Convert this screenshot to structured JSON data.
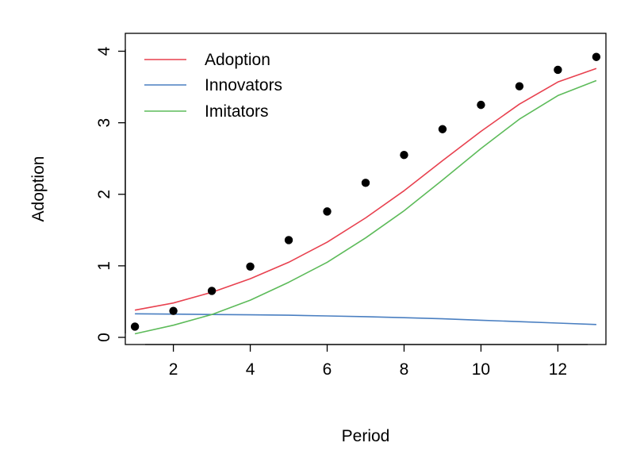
{
  "chart_data": {
    "type": "line",
    "title": "",
    "xlabel": "Period",
    "ylabel": "Adoption",
    "xlim": [
      0.75,
      13.25
    ],
    "ylim": [
      -0.1,
      4.25
    ],
    "x_ticks": [
      2,
      4,
      6,
      8,
      10,
      12
    ],
    "y_ticks": [
      0,
      1,
      2,
      3,
      4
    ],
    "grid": false,
    "legend": {
      "position": "top-left",
      "box": false
    },
    "x": [
      1,
      2,
      3,
      4,
      5,
      6,
      7,
      8,
      9,
      10,
      11,
      12,
      13
    ],
    "series": [
      {
        "name": "Adoption",
        "kind": "line",
        "color": "#e8414f",
        "values": [
          0.38,
          0.48,
          0.63,
          0.82,
          1.05,
          1.33,
          1.67,
          2.05,
          2.47,
          2.88,
          3.26,
          3.57,
          3.76
        ]
      },
      {
        "name": "Innovators",
        "kind": "line",
        "color": "#4a7fc1",
        "values": [
          0.33,
          0.325,
          0.32,
          0.315,
          0.31,
          0.3,
          0.29,
          0.275,
          0.26,
          0.24,
          0.22,
          0.2,
          0.18
        ]
      },
      {
        "name": "Imitators",
        "kind": "line",
        "color": "#5dbb5a",
        "values": [
          0.05,
          0.17,
          0.32,
          0.52,
          0.77,
          1.05,
          1.39,
          1.77,
          2.2,
          2.64,
          3.05,
          3.38,
          3.59
        ]
      },
      {
        "kind": "points",
        "color": "#000000",
        "values": [
          0.15,
          0.37,
          0.65,
          0.99,
          1.36,
          1.76,
          2.16,
          2.55,
          2.91,
          3.25,
          3.51,
          3.74,
          3.92
        ]
      }
    ]
  }
}
